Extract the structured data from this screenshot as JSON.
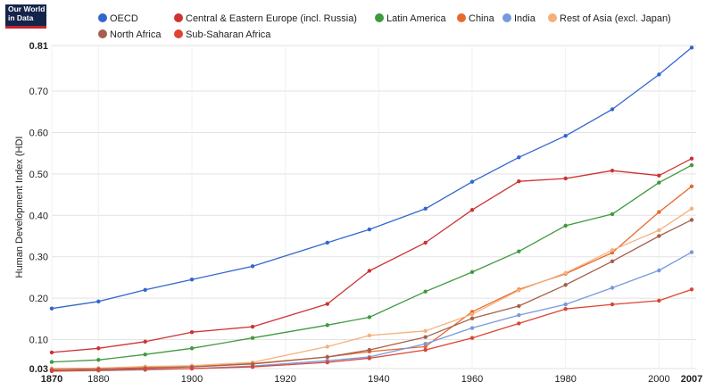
{
  "logo": {
    "line1": "Our World",
    "line2": "in Data"
  },
  "chart_data": {
    "type": "line",
    "title": "",
    "xlabel": "",
    "ylabel": "Human Development Index (HDI",
    "xlim": [
      1870,
      2007
    ],
    "ylim": [
      0.03,
      0.81
    ],
    "x_ticks": [
      {
        "value": 1870,
        "label": "1870",
        "bold": true
      },
      {
        "value": 1880,
        "label": "1880",
        "bold": false
      },
      {
        "value": 1900,
        "label": "1900",
        "bold": false
      },
      {
        "value": 1920,
        "label": "1920",
        "bold": false
      },
      {
        "value": 1940,
        "label": "1940",
        "bold": false
      },
      {
        "value": 1960,
        "label": "1960",
        "bold": false
      },
      {
        "value": 1980,
        "label": "1980",
        "bold": false
      },
      {
        "value": 2000,
        "label": "2000",
        "bold": false
      },
      {
        "value": 2007,
        "label": "2007",
        "bold": true
      }
    ],
    "y_ticks": [
      {
        "value": 0.03,
        "label": "0.03",
        "bold": true
      },
      {
        "value": 0.1,
        "label": "0.10",
        "bold": false
      },
      {
        "value": 0.2,
        "label": "0.20",
        "bold": false
      },
      {
        "value": 0.3,
        "label": "0.30",
        "bold": false
      },
      {
        "value": 0.4,
        "label": "0.40",
        "bold": false
      },
      {
        "value": 0.5,
        "label": "0.50",
        "bold": false
      },
      {
        "value": 0.6,
        "label": "0.60",
        "bold": false
      },
      {
        "value": 0.7,
        "label": "0.70",
        "bold": false
      },
      {
        "value": 0.81,
        "label": "0.81",
        "bold": true
      }
    ],
    "x": [
      1870,
      1880,
      1890,
      1900,
      1913,
      1929,
      1938,
      1950,
      1960,
      1970,
      1980,
      1990,
      2000,
      2007
    ],
    "series": [
      {
        "name": "OECD",
        "color": "#3366cc",
        "values": [
          0.175,
          0.192,
          0.22,
          0.245,
          0.277,
          0.334,
          0.366,
          0.416,
          0.481,
          0.54,
          0.592,
          0.656,
          0.74,
          0.805
        ]
      },
      {
        "name": "Central & Eastern Europe (incl. Russia)",
        "color": "#cc3333",
        "values": [
          0.069,
          0.079,
          0.095,
          0.118,
          0.131,
          0.186,
          0.266,
          0.334,
          0.413,
          0.482,
          0.489,
          0.508,
          0.496,
          0.537
        ]
      },
      {
        "name": "Latin America",
        "color": "#3f9a3f",
        "values": [
          0.046,
          0.051,
          0.064,
          0.079,
          0.104,
          0.135,
          0.154,
          0.216,
          0.263,
          0.313,
          0.375,
          0.403,
          0.479,
          0.521
        ]
      },
      {
        "name": "China",
        "color": "#e8692c",
        "values": [
          0.03,
          0.031,
          0.033,
          0.035,
          0.042,
          0.058,
          0.071,
          0.083,
          0.167,
          0.221,
          0.259,
          0.31,
          0.408,
          0.47
        ]
      },
      {
        "name": "India",
        "color": "#7799dd",
        "values": [
          0.024,
          0.025,
          0.027,
          0.03,
          0.036,
          0.049,
          0.058,
          0.09,
          0.128,
          0.159,
          0.185,
          0.225,
          0.267,
          0.311
        ]
      },
      {
        "name": "Rest of Asia (excl. Japan)",
        "color": "#f5b07a",
        "values": [
          0.029,
          0.031,
          0.035,
          0.037,
          0.045,
          0.083,
          0.11,
          0.121,
          0.161,
          0.219,
          0.261,
          0.316,
          0.364,
          0.416
        ]
      },
      {
        "name": "North Africa",
        "color": "#a5604a",
        "values": [
          0.027,
          0.029,
          0.031,
          0.034,
          0.041,
          0.058,
          0.075,
          0.106,
          0.151,
          0.181,
          0.232,
          0.289,
          0.35,
          0.389
        ]
      },
      {
        "name": "Sub-Saharan Africa",
        "color": "#dd4433",
        "values": [
          0.024,
          0.026,
          0.028,
          0.03,
          0.034,
          0.045,
          0.055,
          0.075,
          0.104,
          0.139,
          0.174,
          0.185,
          0.194,
          0.221
        ]
      }
    ],
    "legend": {
      "placement": "top",
      "rows": [
        [
          "OECD",
          "Central & Eastern Europe (incl. Russia)",
          "Latin America",
          "China",
          "India",
          "Rest of Asia (excl. Japan)"
        ],
        [
          "North Africa",
          "Sub-Saharan Africa"
        ]
      ]
    }
  }
}
